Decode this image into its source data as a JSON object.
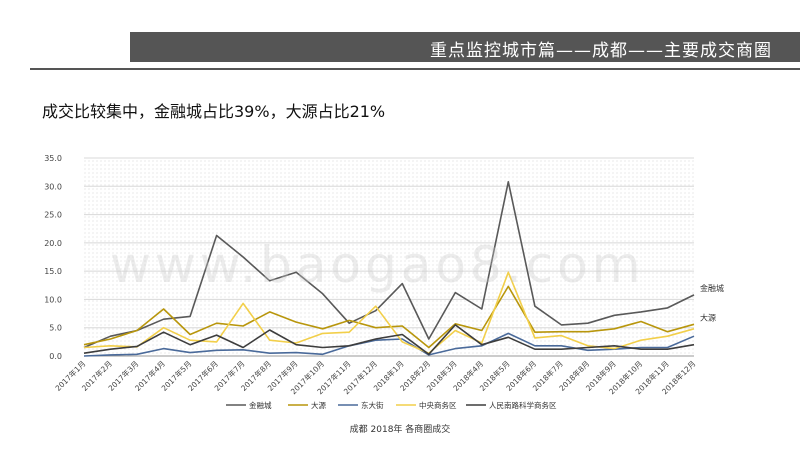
{
  "header": {
    "title": "重点监控城市篇——成都——主要成交商圈"
  },
  "subtitle": "成交比较集中，金融城占比39%，大源占比21%",
  "watermark": "www.baogao8.com",
  "caption": "成都 2018年 各商圈成交",
  "chart_data": {
    "type": "line",
    "categories": [
      "2017年1月",
      "2017年2月",
      "2017年3月",
      "2017年4月",
      "2017年5月",
      "2017年6月",
      "2017年7月",
      "2017年8月",
      "2017年9月",
      "2017年10月",
      "2017年11月",
      "2017年12月",
      "2018年1月",
      "2018年2月",
      "2018年3月",
      "2018年4月",
      "2018年5月",
      "2018年6月",
      "2018年7月",
      "2018年8月",
      "2018年9月",
      "2018年10月",
      "2018年11月",
      "2018年12月"
    ],
    "ylim": [
      0,
      35
    ],
    "yticks": [
      "0.0",
      "5.0",
      "10.0",
      "15.0",
      "20.0",
      "25.0",
      "30.0",
      "35.0"
    ],
    "grid": true,
    "legend_position": "bottom",
    "series": [
      {
        "name": "金融城",
        "color": "#595959",
        "end_label": "金融城",
        "values": [
          1.5,
          3.5,
          4.5,
          6.5,
          7.0,
          21.3,
          17.5,
          13.3,
          14.8,
          11.0,
          5.8,
          8.0,
          12.8,
          3.0,
          11.2,
          8.3,
          30.8,
          8.8,
          5.5,
          5.8,
          7.2,
          7.8,
          8.5,
          10.8
        ]
      },
      {
        "name": "大源",
        "color": "#b8960c",
        "end_label": "大源",
        "values": [
          2.0,
          3.0,
          4.5,
          8.3,
          3.8,
          5.8,
          5.3,
          7.8,
          6.0,
          4.8,
          6.3,
          5.0,
          5.3,
          1.5,
          5.7,
          4.5,
          12.3,
          4.2,
          4.3,
          4.3,
          4.8,
          6.1,
          4.3,
          5.6
        ]
      },
      {
        "name": "东大街",
        "color": "#4a6a9a",
        "end_label": "",
        "values": [
          0.0,
          0.2,
          0.3,
          1.3,
          0.6,
          1.0,
          1.1,
          0.5,
          0.6,
          0.3,
          1.8,
          2.8,
          3.0,
          0.2,
          1.3,
          1.8,
          4.0,
          1.8,
          1.8,
          1.0,
          1.2,
          1.5,
          1.5,
          3.5
        ]
      },
      {
        "name": "中央商务区",
        "color": "#f2cf4a",
        "end_label": "",
        "values": [
          1.5,
          1.8,
          1.6,
          5.0,
          2.8,
          2.5,
          9.3,
          2.8,
          2.3,
          4.0,
          4.2,
          8.8,
          2.5,
          0.5,
          4.5,
          2.3,
          14.8,
          3.2,
          3.6,
          1.8,
          1.3,
          2.8,
          3.5,
          4.8
        ]
      },
      {
        "name": "人民南路科学商务区",
        "color": "#3d3d3d",
        "end_label": "",
        "values": [
          0.5,
          1.2,
          1.7,
          4.2,
          2.0,
          3.7,
          1.5,
          4.6,
          2.0,
          1.5,
          1.8,
          3.0,
          3.8,
          0.3,
          5.5,
          2.0,
          3.3,
          1.2,
          1.2,
          1.5,
          1.8,
          1.2,
          1.2,
          2.0
        ]
      }
    ]
  }
}
